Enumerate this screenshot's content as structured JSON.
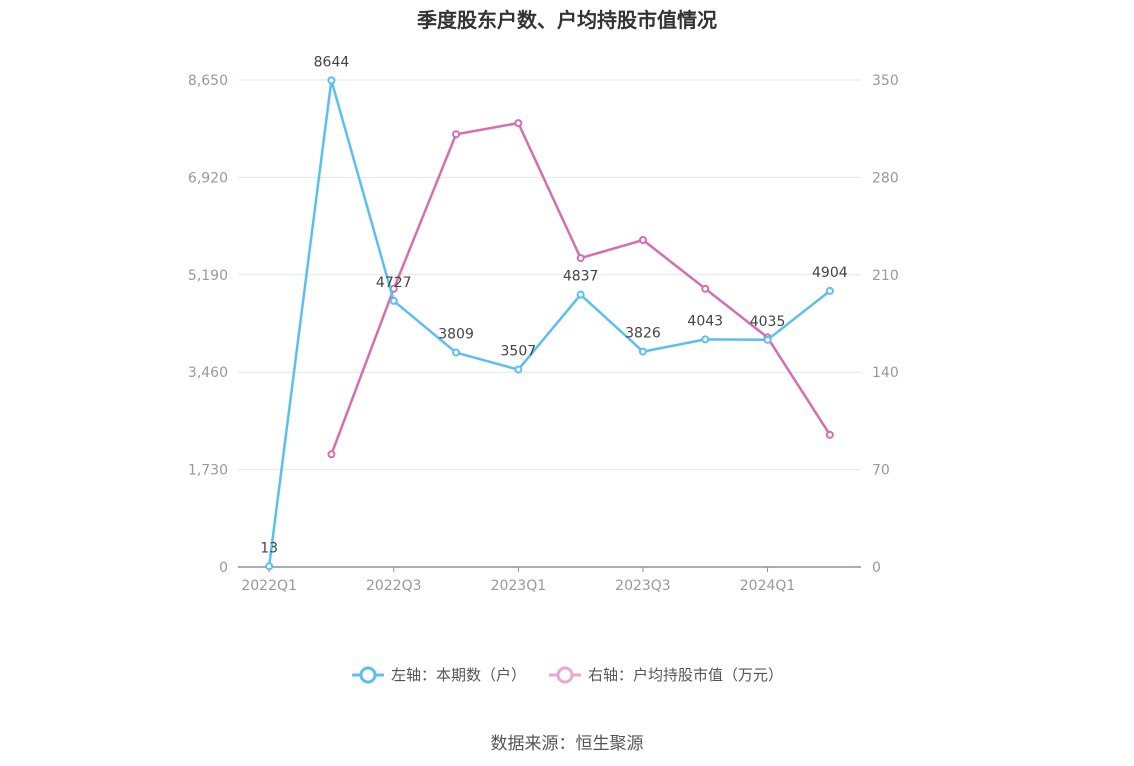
{
  "chart_data": {
    "type": "line",
    "title": "季度股东户数、户均持股市值情况",
    "categories": [
      "2022Q1",
      "2022Q2",
      "2022Q3",
      "2022Q4",
      "2023Q1",
      "2023Q2",
      "2023Q3",
      "2023Q4",
      "2024Q1",
      "2024Q2"
    ],
    "x_tick_labels": [
      "2022Q1",
      "2022Q3",
      "2023Q1",
      "2023Q3",
      "2024Q1"
    ],
    "left_axis": {
      "ticks": [
        "0",
        "1,730",
        "3,460",
        "5,190",
        "6,920",
        "8,650"
      ],
      "min": 0,
      "max": 8650
    },
    "right_axis": {
      "ticks": [
        "0",
        "70",
        "140",
        "210",
        "280",
        "350"
      ],
      "min": 0,
      "max": 350
    },
    "series": [
      {
        "name": "左轴：本期数（户）",
        "axis": "left",
        "color": "#5bc0ee",
        "values": [
          13,
          8644,
          4727,
          3809,
          3507,
          4837,
          3826,
          4043,
          4035,
          4904
        ],
        "labels": [
          "13",
          "8644",
          "4727",
          "3809",
          "3507",
          "4837",
          "3826",
          "4043",
          "4035",
          "4904"
        ]
      },
      {
        "name": "右轴：户均持股市值（万元）",
        "axis": "right",
        "color": "#d36fb0",
        "values": [
          null,
          81,
          200,
          311,
          319,
          222,
          235,
          200,
          165,
          95
        ]
      }
    ],
    "grid": true,
    "legend_position": "bottom-center"
  },
  "source": "数据来源：恒生聚源"
}
